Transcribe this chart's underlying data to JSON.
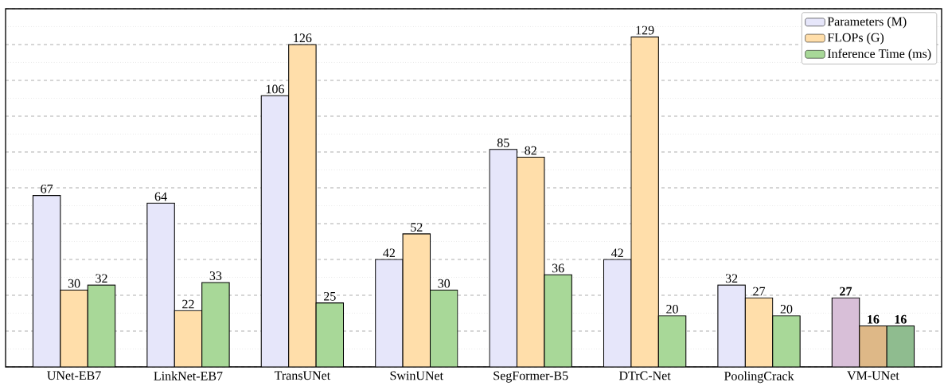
{
  "chart_data": {
    "type": "bar",
    "categories": [
      "UNet-EB7",
      "LinkNet-EB7",
      "TransUNet",
      "SwinUNet",
      "SegFormer-B5",
      "DTrC-Net",
      "PoolingCrack",
      "VM-UNet"
    ],
    "series": [
      {
        "name": "Parameters (M)",
        "color": "#e6e6fa",
        "colors": [
          "#e6e6fa",
          "#e6e6fa",
          "#e6e6fa",
          "#e6e6fa",
          "#e6e6fa",
          "#e6e6fa",
          "#e6e6fa",
          "#d8bfd8"
        ],
        "values": [
          67,
          64,
          106,
          42,
          85,
          42,
          32,
          27
        ],
        "value_labels": [
          "67",
          "64",
          "106",
          "42",
          "85",
          "42",
          "32",
          "**27**"
        ]
      },
      {
        "name": "FLOPs (G)",
        "color": "#ffdeaa",
        "colors": [
          "#ffdeaa",
          "#ffdeaa",
          "#ffdeaa",
          "#ffdeaa",
          "#ffdeaa",
          "#ffdeaa",
          "#ffdeaa",
          "#deb887"
        ],
        "values": [
          30,
          22,
          126,
          52,
          82,
          129,
          27,
          16
        ],
        "value_labels": [
          "30",
          "22",
          "126",
          "52",
          "82",
          "129",
          "27",
          "**16**"
        ]
      },
      {
        "name": "Inference Time (ms)",
        "color": "#a8d898",
        "colors": [
          "#a8d898",
          "#a8d898",
          "#a8d898",
          "#a8d898",
          "#a8d898",
          "#a8d898",
          "#a8d898",
          "#8fbc8f"
        ],
        "values": [
          32,
          33,
          25,
          30,
          36,
          20,
          20,
          16
        ],
        "value_labels": [
          "32",
          "33",
          "25",
          "30",
          "36",
          "20",
          "20",
          "**16**"
        ]
      }
    ],
    "ylim": [
      0,
      140
    ],
    "yticks": [
      {
        "value": 0,
        "label": null
      },
      {
        "value": 14,
        "label": null
      },
      {
        "value": 28,
        "label": null
      },
      {
        "value": 42,
        "label": null
      },
      {
        "value": 56,
        "label": null
      },
      {
        "value": 70,
        "label": null
      },
      {
        "value": 84,
        "label": null
      },
      {
        "value": 98,
        "label": null
      },
      {
        "value": 112,
        "label": null
      },
      {
        "value": 126,
        "label": null
      },
      {
        "value": 140,
        "label": null
      }
    ],
    "tick_labels": "x",
    "grid": "y",
    "legend": "top right"
  }
}
